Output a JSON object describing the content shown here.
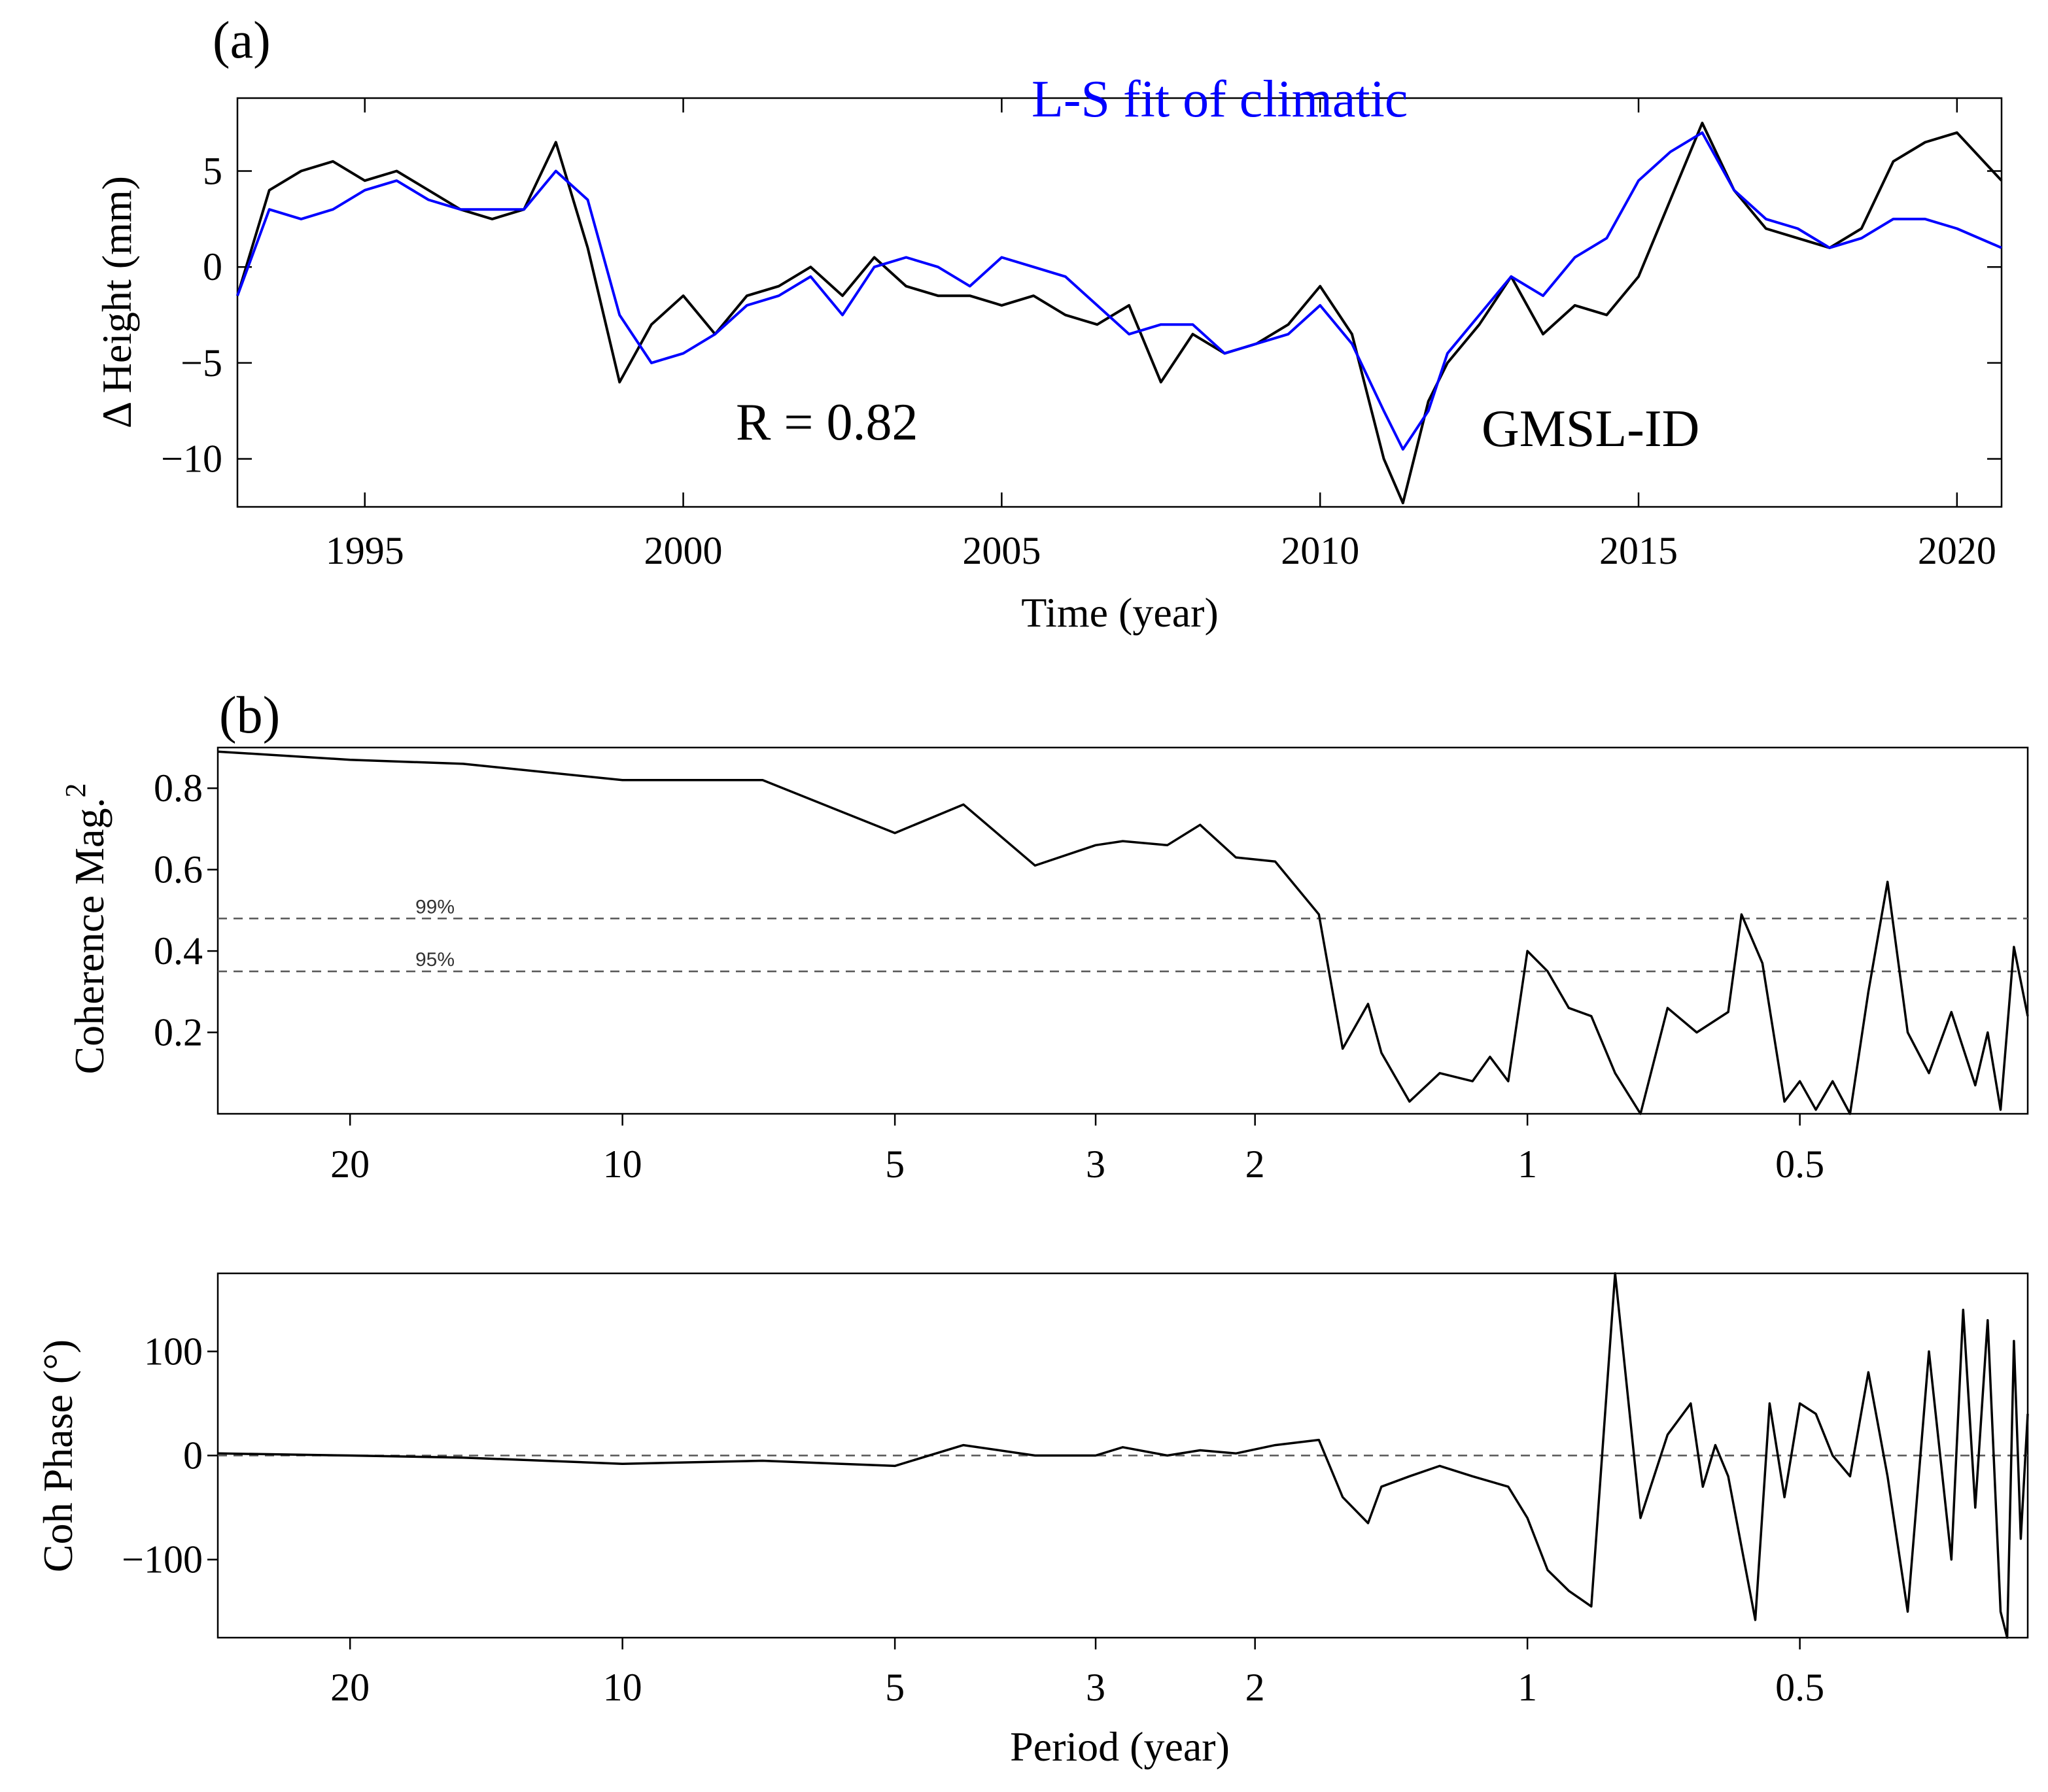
{
  "panel_a": {
    "label": "(a)",
    "chart_data": {
      "type": "line",
      "xlabel": "Time (year)",
      "ylabel": "Δ Height (mm)",
      "xlim": [
        1993,
        2020.7
      ],
      "ylim": [
        -12.5,
        8.8
      ],
      "xticks": [
        1995,
        2000,
        2005,
        2010,
        2015,
        2020
      ],
      "yticks": [
        5,
        0,
        -5,
        -10
      ],
      "ytick_labels": [
        "5",
        "0",
        "−5",
        "−10"
      ],
      "annotations": {
        "fit_label": "L-S fit of climatic",
        "r_label": "R = 0.82",
        "series_label": "GMSL-ID"
      },
      "series": [
        {
          "name": "GMSL-ID",
          "color": "#000000",
          "x": [
            1993.0,
            1993.5,
            1994.0,
            1994.5,
            1995.0,
            1995.5,
            1996.0,
            1996.5,
            1997.0,
            1997.5,
            1998.0,
            1998.5,
            1999.0,
            1999.5,
            2000.0,
            2000.5,
            2001.0,
            2001.5,
            2002.0,
            2002.5,
            2003.0,
            2003.5,
            2004.0,
            2004.5,
            2005.0,
            2005.5,
            2006.0,
            2006.5,
            2007.0,
            2007.5,
            2008.0,
            2008.5,
            2009.0,
            2009.5,
            2010.0,
            2010.5,
            2011.0,
            2011.3,
            2011.7,
            2012.0,
            2012.5,
            2013.0,
            2013.5,
            2014.0,
            2014.5,
            2015.0,
            2015.5,
            2016.0,
            2016.5,
            2017.0,
            2017.5,
            2018.0,
            2018.5,
            2019.0,
            2019.5,
            2020.0,
            2020.7
          ],
          "values": [
            -1.5,
            4.0,
            5.0,
            5.5,
            4.5,
            5.0,
            4.0,
            3.0,
            2.5,
            3.0,
            6.5,
            1.0,
            -6.0,
            -3.0,
            -1.5,
            -3.5,
            -1.5,
            -1.0,
            0.0,
            -1.5,
            0.5,
            -1.0,
            -1.5,
            -1.5,
            -2.0,
            -1.5,
            -2.5,
            -3.0,
            -2.0,
            -6.0,
            -3.5,
            -4.5,
            -4.0,
            -3.0,
            -1.0,
            -3.5,
            -10.0,
            -12.3,
            -7.0,
            -5.0,
            -3.0,
            -0.5,
            -3.5,
            -2.0,
            -2.5,
            -0.5,
            3.5,
            7.5,
            4.0,
            2.0,
            1.5,
            1.0,
            2.0,
            5.5,
            6.5,
            7.0,
            4.5
          ]
        },
        {
          "name": "L-S fit of climatic",
          "color": "#0000ff",
          "x": [
            1993.0,
            1993.5,
            1994.0,
            1994.5,
            1995.0,
            1995.5,
            1996.0,
            1996.5,
            1997.0,
            1997.5,
            1998.0,
            1998.5,
            1999.0,
            1999.5,
            2000.0,
            2000.5,
            2001.0,
            2001.5,
            2002.0,
            2002.5,
            2003.0,
            2003.5,
            2004.0,
            2004.5,
            2005.0,
            2005.5,
            2006.0,
            2006.5,
            2007.0,
            2007.5,
            2008.0,
            2008.5,
            2009.0,
            2009.5,
            2010.0,
            2010.5,
            2011.0,
            2011.3,
            2011.7,
            2012.0,
            2012.5,
            2013.0,
            2013.5,
            2014.0,
            2014.5,
            2015.0,
            2015.5,
            2016.0,
            2016.5,
            2017.0,
            2017.5,
            2018.0,
            2018.5,
            2019.0,
            2019.5,
            2020.0,
            2020.7
          ],
          "values": [
            -1.5,
            3.0,
            2.5,
            3.0,
            4.0,
            4.5,
            3.5,
            3.0,
            3.0,
            3.0,
            5.0,
            3.5,
            -2.5,
            -5.0,
            -4.5,
            -3.5,
            -2.0,
            -1.5,
            -0.5,
            -2.5,
            0.0,
            0.5,
            0.0,
            -1.0,
            0.5,
            0.0,
            -0.5,
            -2.0,
            -3.5,
            -3.0,
            -3.0,
            -4.5,
            -4.0,
            -3.5,
            -2.0,
            -4.0,
            -7.5,
            -9.5,
            -7.5,
            -4.5,
            -2.5,
            -0.5,
            -1.5,
            0.5,
            1.5,
            4.5,
            6.0,
            7.0,
            4.0,
            2.5,
            2.0,
            1.0,
            1.5,
            2.5,
            2.5,
            2.0,
            1.0
          ]
        }
      ]
    }
  },
  "panel_b": {
    "label": "(b)",
    "chart_data": [
      {
        "type": "line",
        "ylabel": "Coherence Mag.²",
        "ylabel_main": "Coherence Mag.",
        "ylabel_sup": "2",
        "xscale": "log period, decreasing to the right",
        "xlim_period": [
          28,
          0.28
        ],
        "ylim": [
          0,
          0.9
        ],
        "xtick_values": [
          20,
          10,
          5,
          3,
          2,
          1,
          0.5
        ],
        "xtick_labels": [
          "20",
          "10",
          "5",
          "3",
          "2",
          "1",
          "0.5"
        ],
        "yticks": [
          0.2,
          0.4,
          0.6,
          0.8
        ],
        "ytick_labels": [
          "0.2",
          "0.4",
          "0.6",
          "0.8"
        ],
        "thresholds": [
          {
            "label": "99%",
            "value": 0.48
          },
          {
            "label": "95%",
            "value": 0.35
          }
        ],
        "series": [
          {
            "name": "coherence",
            "period": [
              28,
              20,
              15,
              10,
              7,
              5,
              4.2,
              3.5,
              3.0,
              2.8,
              2.5,
              2.3,
              2.1,
              1.9,
              1.7,
              1.6,
              1.5,
              1.45,
              1.35,
              1.25,
              1.15,
              1.1,
              1.05,
              1.0,
              0.95,
              0.9,
              0.85,
              0.8,
              0.75,
              0.7,
              0.65,
              0.6,
              0.58,
              0.55,
              0.52,
              0.5,
              0.48,
              0.46,
              0.44,
              0.42,
              0.4,
              0.38,
              0.36,
              0.34,
              0.32,
              0.31,
              0.3,
              0.29,
              0.28
            ],
            "values": [
              0.89,
              0.87,
              0.86,
              0.82,
              0.82,
              0.69,
              0.76,
              0.61,
              0.66,
              0.67,
              0.66,
              0.71,
              0.63,
              0.62,
              0.49,
              0.16,
              0.27,
              0.15,
              0.03,
              0.1,
              0.08,
              0.14,
              0.08,
              0.4,
              0.35,
              0.26,
              0.24,
              0.1,
              0.0,
              0.26,
              0.2,
              0.25,
              0.49,
              0.37,
              0.03,
              0.08,
              0.01,
              0.08,
              0.0,
              0.3,
              0.57,
              0.2,
              0.1,
              0.25,
              0.07,
              0.2,
              0.01,
              0.41,
              0.24
            ]
          }
        ]
      },
      {
        "type": "line",
        "ylabel": "Coh Phase (°)",
        "xlabel": "Period (year)",
        "xscale": "log period, decreasing to the right",
        "xlim_period": [
          28,
          0.28
        ],
        "ylim": [
          -175,
          175
        ],
        "xtick_values": [
          20,
          10,
          5,
          3,
          2,
          1,
          0.5
        ],
        "xtick_labels": [
          "20",
          "10",
          "5",
          "3",
          "2",
          "1",
          "0.5"
        ],
        "yticks": [
          100,
          0,
          -100
        ],
        "ytick_labels": [
          "100",
          "0",
          "−100"
        ],
        "reference_line": 0,
        "series": [
          {
            "name": "coherence phase",
            "period": [
              28,
              20,
              15,
              10,
              7,
              5,
              4.2,
              3.5,
              3.0,
              2.8,
              2.5,
              2.3,
              2.1,
              1.9,
              1.7,
              1.6,
              1.5,
              1.45,
              1.35,
              1.25,
              1.15,
              1.05,
              1.0,
              0.95,
              0.9,
              0.85,
              0.8,
              0.75,
              0.7,
              0.66,
              0.64,
              0.62,
              0.6,
              0.56,
              0.54,
              0.52,
              0.5,
              0.48,
              0.46,
              0.44,
              0.42,
              0.4,
              0.38,
              0.36,
              0.34,
              0.33,
              0.32,
              0.31,
              0.3,
              0.295,
              0.29,
              0.285,
              0.28
            ],
            "values": [
              2,
              0,
              -2,
              -8,
              -5,
              -10,
              10,
              0,
              0,
              8,
              0,
              5,
              2,
              10,
              15,
              -40,
              -65,
              -30,
              -20,
              -10,
              -20,
              -30,
              -60,
              -110,
              -130,
              -145,
              175,
              -60,
              20,
              50,
              -30,
              10,
              -20,
              -158,
              50,
              -40,
              50,
              40,
              0,
              -20,
              80,
              -20,
              -150,
              100,
              -100,
              140,
              -50,
              130,
              -150,
              -175,
              110,
              -80,
              40
            ]
          }
        ]
      }
    ]
  }
}
